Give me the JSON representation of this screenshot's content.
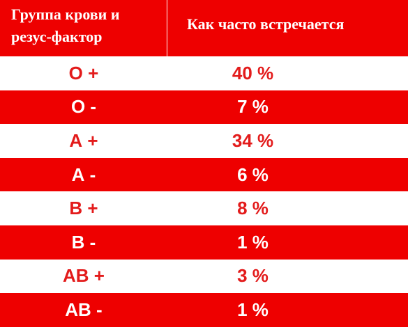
{
  "header": {
    "group_label": "Группа крови и\nрезус-фактор",
    "frequency_label": "Как часто встречается"
  },
  "rows": [
    {
      "group": "О +",
      "frequency": "40 %"
    },
    {
      "group": "О -",
      "frequency": "7 %"
    },
    {
      "group": "А +",
      "frequency": "34 %"
    },
    {
      "group": "А -",
      "frequency": "6 %"
    },
    {
      "group": "В +",
      "frequency": "8 %"
    },
    {
      "group": "В -",
      "frequency": "1 %"
    },
    {
      "group": "АВ +",
      "frequency": "3 %"
    },
    {
      "group": "АВ -",
      "frequency": "1 %"
    }
  ],
  "colors": {
    "band_red": "#ee0000",
    "text_red": "#e31b1b",
    "white": "#ffffff"
  }
}
